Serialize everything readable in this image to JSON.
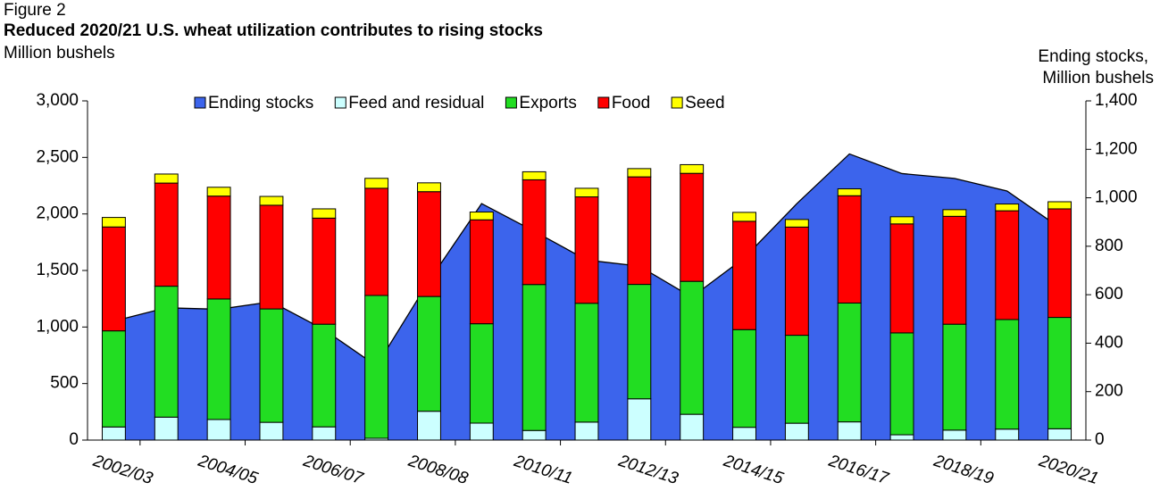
{
  "chart_data": {
    "type": "bar",
    "stacked": true,
    "figure_label": "Figure 2",
    "title": "Reduced 2020/21 U.S. wheat utilization contributes to rising stocks",
    "y_label": "Million bushels",
    "y2_label": [
      "Ending stocks,",
      "Million bushels"
    ],
    "categories": [
      "2002/03",
      null,
      "2004/05",
      null,
      "2006/07",
      null,
      "2008/08",
      null,
      "2010/11",
      null,
      "2012/13",
      null,
      "2014/15",
      null,
      "2016/17",
      null,
      "2018/19",
      null,
      "2020/21"
    ],
    "series": [
      {
        "name": "Ending stocks",
        "type": "area",
        "axis": "y2",
        "color": "#3c64ec",
        "values": [
          491,
          546,
          540,
          571,
          456,
          306,
          657,
          976,
          862,
          743,
          718,
          590,
          752,
          976,
          1181,
          1100,
          1080,
          1028,
          877
        ]
      },
      {
        "name": "Feed and residual",
        "color": "#ccffff",
        "values": [
          116,
          203,
          182,
          157,
          117,
          16,
          255,
          150,
          85,
          159,
          365,
          228,
          113,
          149,
          161,
          47,
          88,
          97,
          100
        ]
      },
      {
        "name": "Exports",
        "color": "#22dd22",
        "values": [
          850,
          1158,
          1066,
          1003,
          908,
          1263,
          1015,
          879,
          1291,
          1051,
          1012,
          1176,
          864,
          778,
          1051,
          901,
          937,
          969,
          985
        ]
      },
      {
        "name": "Food",
        "color": "#ff0000",
        "values": [
          919,
          912,
          910,
          917,
          938,
          948,
          927,
          919,
          926,
          941,
          951,
          955,
          958,
          957,
          949,
          964,
          954,
          962,
          960
        ]
      },
      {
        "name": "Seed",
        "color": "#ffff00",
        "values": [
          84,
          80,
          78,
          78,
          82,
          88,
          78,
          69,
          71,
          76,
          73,
          77,
          79,
          67,
          61,
          63,
          59,
          60,
          63
        ]
      }
    ],
    "ylim": [
      0,
      3000
    ],
    "yticks": [
      0,
      500,
      {
        "value": 1000,
        "label": "1,000"
      },
      {
        "value": 1500,
        "label": "1,500"
      },
      {
        "value": 2000,
        "label": "2,000"
      },
      {
        "value": 2500,
        "label": "2,500"
      },
      {
        "value": 3000,
        "label": "3,000"
      }
    ],
    "y2lim": [
      0,
      1400
    ],
    "y2ticks": [
      0,
      200,
      400,
      600,
      800,
      {
        "value": 1000,
        "label": "1,000"
      },
      {
        "value": 1200,
        "label": "1,200"
      },
      {
        "value": 1400,
        "label": "1,400"
      }
    ],
    "legend": "top"
  }
}
